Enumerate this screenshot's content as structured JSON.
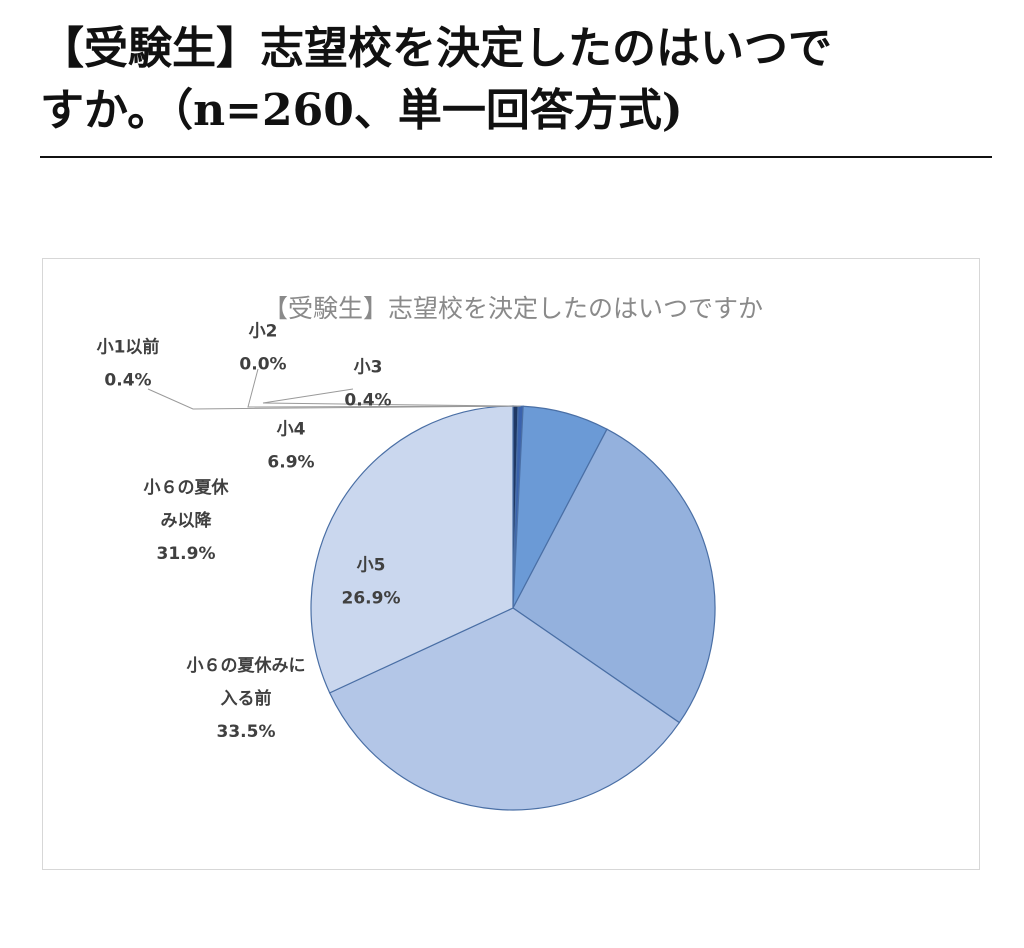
{
  "heading": {
    "line1": "【受験生】志望校を決定したのはいつで",
    "line2": "すか。（n=260、単一回答方式)"
  },
  "chart_data": {
    "type": "pie",
    "title": "【受験生】志望校を決定したのはいつですか",
    "slices": [
      {
        "label_lines": [
          "小1以前"
        ],
        "value_label": "0.4%",
        "value": 0.4,
        "color": "#1f3864"
      },
      {
        "label_lines": [
          "小2"
        ],
        "value_label": "0.0%",
        "value": 0.0,
        "color": "#2e5597"
      },
      {
        "label_lines": [
          "小3"
        ],
        "value_label": "0.4%",
        "value": 0.4,
        "color": "#3a62ad"
      },
      {
        "label_lines": [
          "小4"
        ],
        "value_label": "6.9%",
        "value": 6.9,
        "color": "#6b9ad6"
      },
      {
        "label_lines": [
          "小5"
        ],
        "value_label": "26.9%",
        "value": 26.9,
        "color": "#94b1dd"
      },
      {
        "label_lines": [
          "小６の夏休みに",
          "入る前"
        ],
        "value_label": "33.5%",
        "value": 33.5,
        "color": "#b3c6e7"
      },
      {
        "label_lines": [
          "小６の夏休",
          "み以降"
        ],
        "value_label": "31.9%",
        "value": 31.9,
        "color": "#cad7ee"
      }
    ],
    "legend": "none",
    "slice_border_color": "#4a6fa5"
  }
}
